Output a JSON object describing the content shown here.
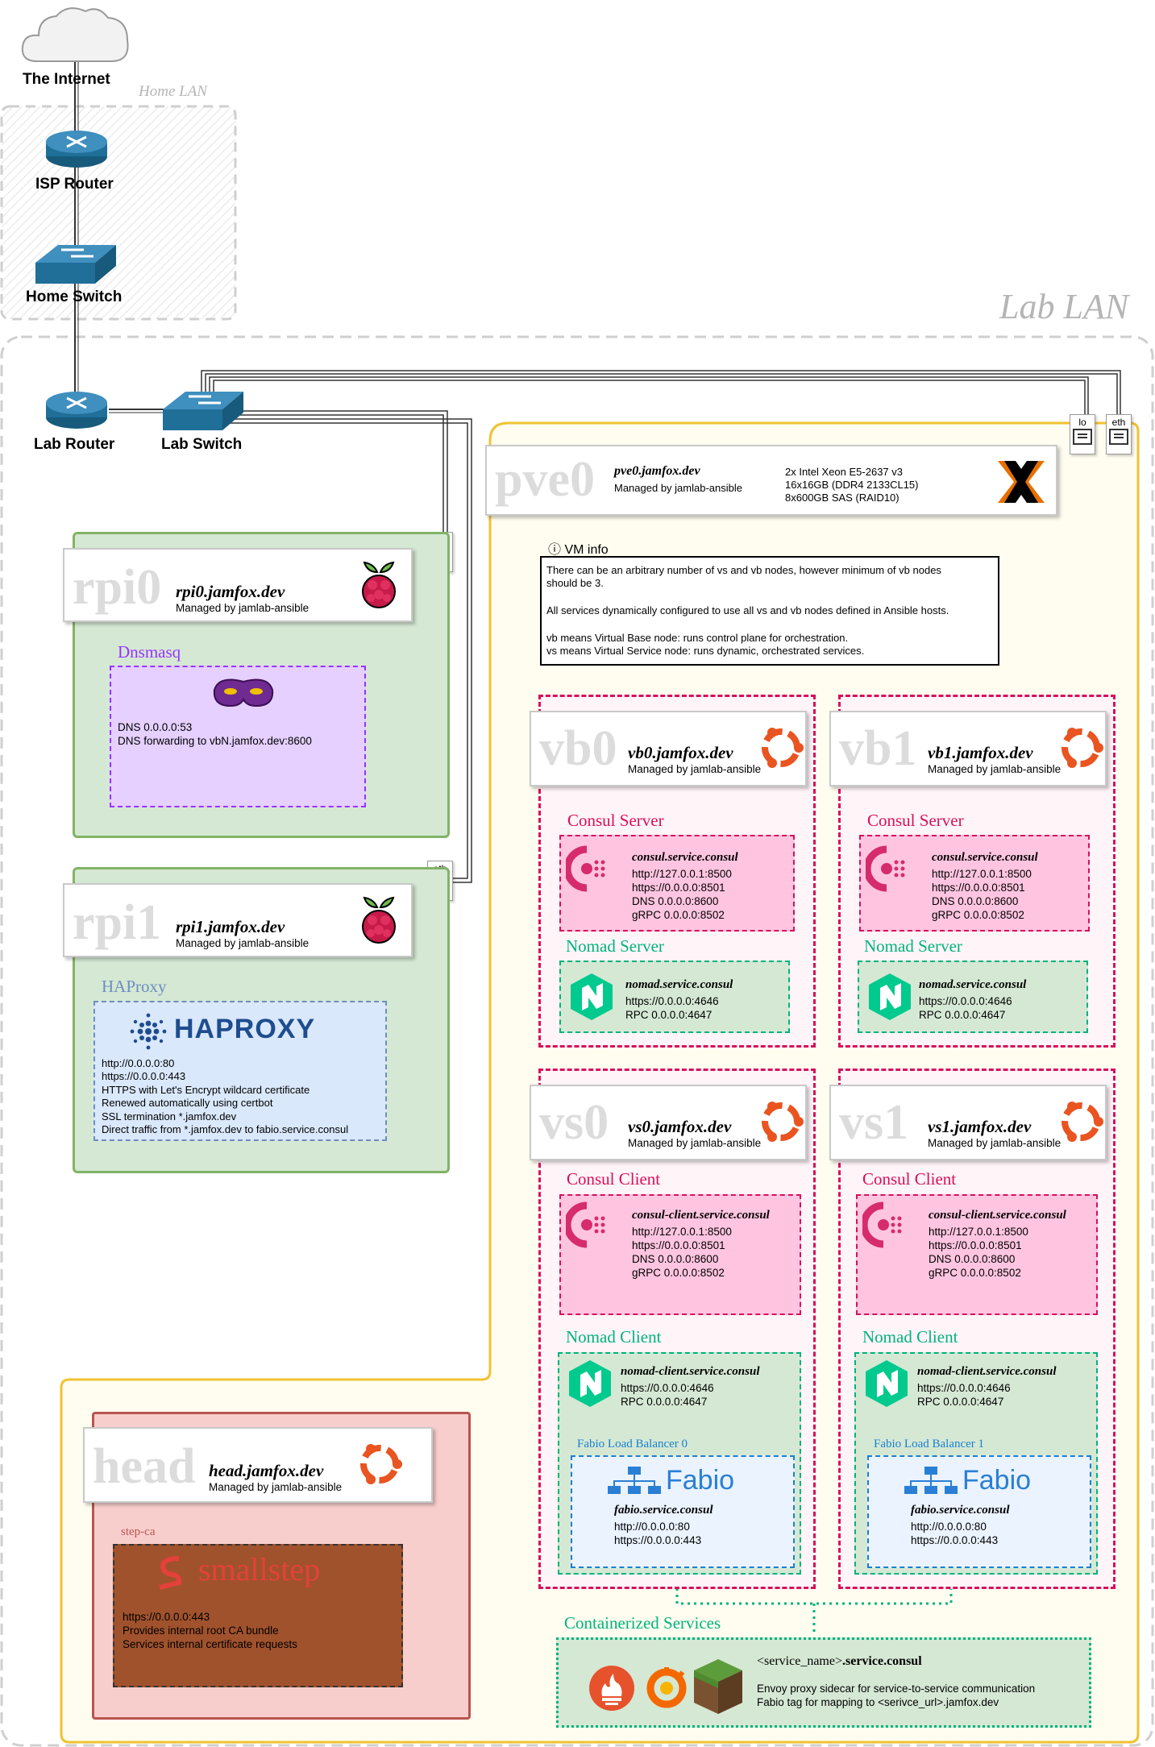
{
  "network": {
    "internet": "The Internet",
    "home_lan": "Home LAN",
    "isp_router": "ISP Router",
    "home_switch": "Home Switch",
    "lab_lan": "Lab LAN",
    "lab_router": "Lab Router",
    "lab_switch": "Lab Switch",
    "port_eth": "eth",
    "port_lo": "lo"
  },
  "pve0": {
    "big": "pve0",
    "host": "pve0.jamfox.dev",
    "managed": "Managed by jamlab-ansible",
    "specs": [
      "2x Intel Xeon E5-2637 v3",
      "16x16GB (DDR4 2133CL15)",
      "8x600GB SAS (RAID10)"
    ]
  },
  "vm_info": {
    "title": "ⓘ VM info",
    "lines": [
      "There can be an arbitrary number of vs and vb nodes, however minimum of vb nodes",
      "should be 3.",
      "",
      "All services dynamically configured to use all vs and vb nodes defined in Ansible hosts.",
      "",
      "vb means Virtual Base node: runs control plane for orchestration.",
      "vs means Virtual Service node: runs dynamic, orchestrated services."
    ]
  },
  "rpi0": {
    "big": "rpi0",
    "host": "rpi0.jamfox.dev",
    "managed": "Managed by jamlab-ansible",
    "service": "Dnsmasq",
    "lines": [
      "DNS 0.0.0.0:53",
      "DNS forwarding to vbN.jamfox.dev:8600"
    ]
  },
  "rpi1": {
    "big": "rpi1",
    "host": "rpi1.jamfox.dev",
    "managed": "Managed by jamlab-ansible",
    "service": "HAProxy",
    "logo": "HAPROXY",
    "lines": [
      "http://0.0.0.0:80",
      "https://0.0.0.0:443",
      "HTTPS with Let's Encrypt wildcard certificate",
      "Renewed automatically using certbot",
      "SSL termination *.jamfox.dev",
      "Direct traffic from *.jamfox.dev to fabio.service.consul"
    ]
  },
  "vb0": {
    "big": "vb0",
    "host": "vb0.jamfox.dev",
    "managed": "Managed by jamlab-ansible",
    "consul_label": "Consul Server",
    "consul_name": "consul.service.consul",
    "consul_lines": [
      "http://127.0.0.1:8500",
      "https://0.0.0.0:8501",
      "DNS 0.0.0.0:8600",
      "gRPC 0.0.0.0:8502"
    ],
    "nomad_label": "Nomad Server",
    "nomad_name": "nomad.service.consul",
    "nomad_lines": [
      "https://0.0.0.0:4646",
      "RPC 0.0.0.0:4647"
    ]
  },
  "vb1": {
    "big": "vb1",
    "host": "vb1.jamfox.dev",
    "managed": "Managed by jamlab-ansible",
    "consul_label": "Consul Server",
    "consul_name": "consul.service.consul",
    "consul_lines": [
      "http://127.0.0.1:8500",
      "https://0.0.0.0:8501",
      "DNS 0.0.0.0:8600",
      "gRPC 0.0.0.0:8502"
    ],
    "nomad_label": "Nomad Server",
    "nomad_name": "nomad.service.consul",
    "nomad_lines": [
      "https://0.0.0.0:4646",
      "RPC 0.0.0.0:4647"
    ]
  },
  "vs0": {
    "big": "vs0",
    "host": "vs0.jamfox.dev",
    "managed": "Managed by jamlab-ansible",
    "consul_label": "Consul Client",
    "consul_name": "consul-client.service.consul",
    "consul_lines": [
      "http://127.0.0.1:8500",
      "https://0.0.0.0:8501",
      "DNS 0.0.0.0:8600",
      "gRPC 0.0.0.0:8502"
    ],
    "nomad_label": "Nomad Client",
    "nomad_name": "nomad-client.service.consul",
    "nomad_lines": [
      "https://0.0.0.0:4646",
      "RPC 0.0.0.0:4647"
    ],
    "fabio_label": "Fabio Load Balancer 0",
    "fabio_logo": "Fabio",
    "fabio_name": "fabio.service.consul",
    "fabio_lines": [
      "http://0.0.0.0:80",
      "https://0.0.0.0:443"
    ]
  },
  "vs1": {
    "big": "vs1",
    "host": "vs1.jamfox.dev",
    "managed": "Managed by jamlab-ansible",
    "consul_label": "Consul Client",
    "consul_name": "consul-client.service.consul",
    "consul_lines": [
      "http://127.0.0.1:8500",
      "https://0.0.0.0:8501",
      "DNS 0.0.0.0:8600",
      "gRPC 0.0.0.0:8502"
    ],
    "nomad_label": "Nomad Client",
    "nomad_name": "nomad-client.service.consul",
    "nomad_lines": [
      "https://0.0.0.0:4646",
      "RPC 0.0.0.0:4647"
    ],
    "fabio_label": "Fabio Load Balancer 1",
    "fabio_logo": "Fabio",
    "fabio_name": "fabio.service.consul",
    "fabio_lines": [
      "http://0.0.0.0:80",
      "https://0.0.0.0:443"
    ]
  },
  "head": {
    "big": "head",
    "host": "head.jamfox.dev",
    "managed": "Managed by jamlab-ansible",
    "service": "step-ca",
    "logo": "smallstep",
    "lines": [
      "https://0.0.0.0:443",
      "Provides internal root CA bundle",
      "Services internal certificate requests"
    ]
  },
  "containerized": {
    "label": "Containerized Services",
    "name_prefix": "<service_name>",
    "name_suffix": ".service.consul",
    "lines": [
      "Envoy proxy sidecar for service-to-service communication",
      "Fabio tag for mapping to <serivce_url>.jamfox.dev"
    ]
  },
  "colors": {
    "home_lan_border": "#cfcfcf",
    "lab_lan_border": "#cfcfcf",
    "pve_border": "#f1c232",
    "pve_fill": "#fffdf0",
    "rpi_border": "#82b366",
    "rpi_fill": "#d5e8d4",
    "vm_border": "#d80f5a",
    "consul_fill": "#ffc5e0",
    "nomad_fill": "#d5e8d4",
    "nomad_border": "#00b37d",
    "fabio_border": "#1a7fd0",
    "fabio_fill": "#eaf3ff",
    "head_border": "#b85450",
    "head_fill": "#f8cecc",
    "stepca_fill": "#a0522d",
    "dnsmasq_border": "#9933ff",
    "dnsmasq_fill": "#e5d0ff",
    "haproxy_border": "#6c8ebf",
    "haproxy_fill": "#dae8fc",
    "router_blue": "#1f6f98"
  },
  "icons": [
    "cloud-icon",
    "router-icon",
    "switch-icon",
    "raspberry-pi-icon",
    "ubuntu-icon",
    "proxmox-icon",
    "consul-icon",
    "nomad-icon",
    "dnsmasq-mask-icon",
    "haproxy-icon",
    "fabio-icon",
    "smallstep-icon",
    "prometheus-icon",
    "grafana-icon",
    "minecraft-icon",
    "ethernet-port-icon"
  ]
}
